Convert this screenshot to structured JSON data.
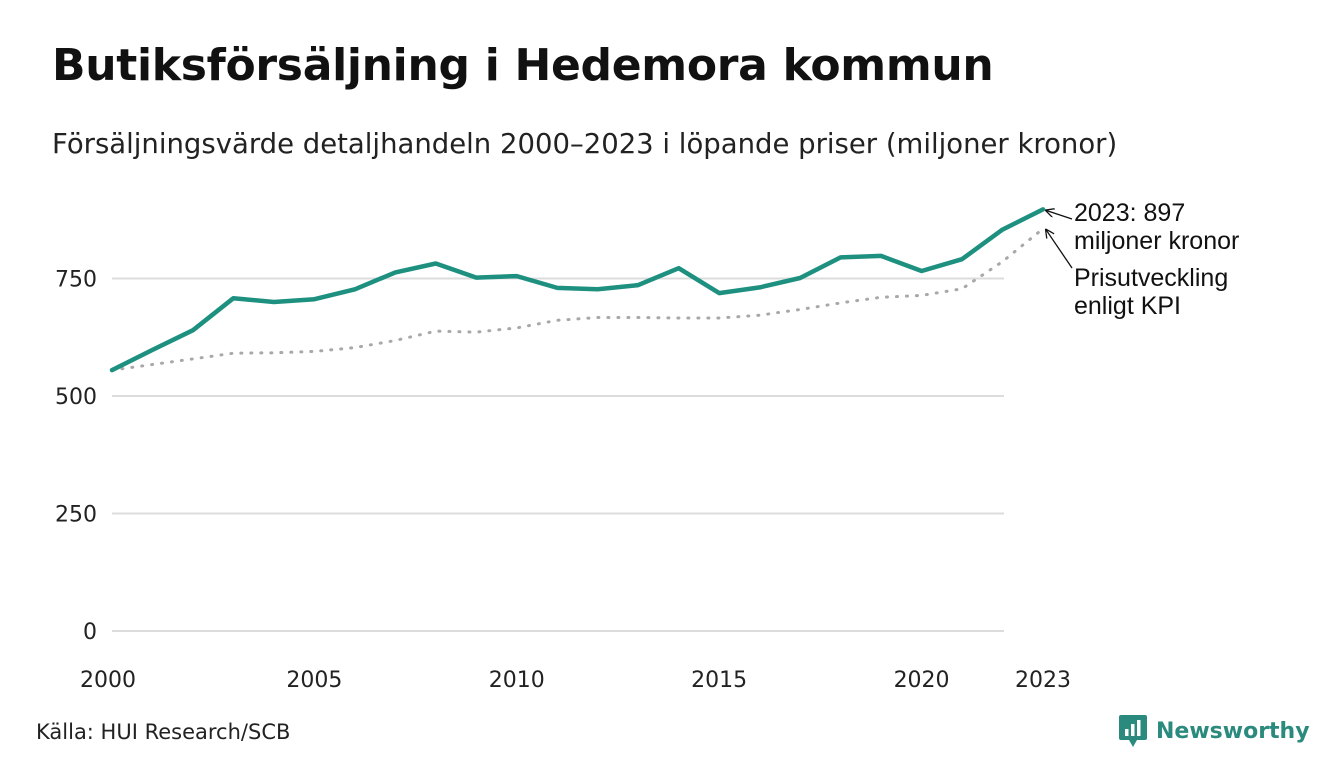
{
  "header": {
    "title": "Butiksförsäljning i Hedemora kommun",
    "subtitle": "Försäljningsvärde detaljhandeln 2000–2023 i löpande priser (miljoner kronor)"
  },
  "chart_data": {
    "type": "line",
    "title": "Butiksförsäljning i Hedemora kommun",
    "subtitle": "Försäljningsvärde detaljhandeln 2000–2023 i löpande priser (miljoner kronor)",
    "xlabel": "",
    "ylabel": "",
    "x": [
      2000,
      2001,
      2002,
      2003,
      2004,
      2005,
      2006,
      2007,
      2008,
      2009,
      2010,
      2011,
      2012,
      2013,
      2014,
      2015,
      2016,
      2017,
      2018,
      2019,
      2020,
      2021,
      2022,
      2023
    ],
    "xlim": [
      2000,
      2023
    ],
    "ylim": [
      0,
      900
    ],
    "x_ticks": [
      {
        "value": 2000,
        "label": "2000"
      },
      {
        "value": 2005,
        "label": "2005"
      },
      {
        "value": 2010,
        "label": "2010"
      },
      {
        "value": 2015,
        "label": "2015"
      },
      {
        "value": 2020,
        "label": "2020"
      },
      {
        "value": 2023,
        "label": "2023"
      }
    ],
    "y_ticks": [
      {
        "value": 0,
        "label": "0"
      },
      {
        "value": 250,
        "label": "250"
      },
      {
        "value": 500,
        "label": "500"
      },
      {
        "value": 750,
        "label": "750"
      }
    ],
    "grid": true,
    "series": [
      {
        "name": "Försäljningsvärde",
        "style": "solid",
        "color": "#1e9080",
        "values": [
          555,
          598,
          640,
          708,
          700,
          706,
          727,
          763,
          782,
          752,
          755,
          730,
          727,
          736,
          772,
          719,
          731,
          751,
          795,
          798,
          766,
          791,
          854,
          897
        ]
      },
      {
        "name": "Prisutveckling enligt KPI",
        "style": "dotted",
        "color": "#a8a8a8",
        "values": [
          555,
          567,
          579,
          591,
          592,
          595,
          603,
          618,
          638,
          636,
          645,
          661,
          667,
          667,
          666,
          666,
          672,
          684,
          698,
          710,
          714,
          728,
          786,
          856
        ]
      }
    ],
    "annotations": [
      {
        "series": "Försäljningsvärde",
        "lines": [
          "2023: 897",
          "miljoner kronor"
        ]
      },
      {
        "series": "Prisutveckling enligt KPI",
        "lines": [
          "Prisutveckling",
          "enligt KPI"
        ]
      }
    ]
  },
  "footer": {
    "source": "Källa: HUI Research/SCB",
    "brand": "Newsworthy",
    "brand_color": "#2a8a7e"
  }
}
